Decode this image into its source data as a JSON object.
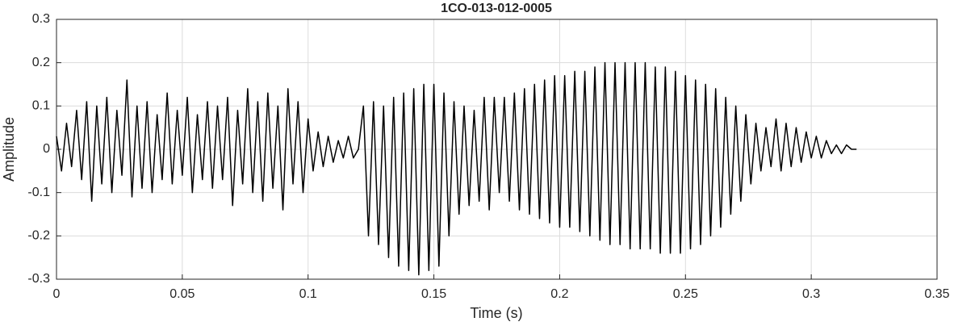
{
  "chart_data": {
    "type": "line",
    "title": "1CO-013-012-0005",
    "xlabel": "Time (s)",
    "ylabel": "Amplitude",
    "color": "#000000",
    "grid": true,
    "xlim": [
      0,
      0.35
    ],
    "ylim": [
      -0.3,
      0.3
    ],
    "xticks": [
      0,
      0.05,
      0.1,
      0.15,
      0.2,
      0.25,
      0.3,
      0.35
    ],
    "yticks": [
      -0.3,
      -0.2,
      -0.1,
      0,
      0.1,
      0.2,
      0.3
    ],
    "x": [
      0,
      0.002,
      0.004,
      0.006,
      0.008,
      0.01,
      0.012,
      0.014,
      0.016,
      0.018,
      0.02,
      0.022,
      0.024,
      0.026,
      0.028,
      0.03,
      0.032,
      0.034,
      0.036,
      0.038,
      0.04,
      0.042,
      0.044,
      0.046,
      0.048,
      0.05,
      0.052,
      0.054,
      0.056,
      0.058,
      0.06,
      0.062,
      0.064,
      0.066,
      0.068,
      0.07,
      0.072,
      0.074,
      0.076,
      0.078,
      0.08,
      0.082,
      0.084,
      0.086,
      0.088,
      0.09,
      0.092,
      0.094,
      0.096,
      0.098,
      0.1,
      0.102,
      0.104,
      0.106,
      0.108,
      0.11,
      0.112,
      0.114,
      0.116,
      0.118,
      0.12,
      0.122,
      0.124,
      0.126,
      0.128,
      0.13,
      0.132,
      0.134,
      0.136,
      0.138,
      0.14,
      0.142,
      0.144,
      0.146,
      0.148,
      0.15,
      0.152,
      0.154,
      0.156,
      0.158,
      0.16,
      0.162,
      0.164,
      0.166,
      0.168,
      0.17,
      0.172,
      0.174,
      0.176,
      0.178,
      0.18,
      0.182,
      0.184,
      0.186,
      0.188,
      0.19,
      0.192,
      0.194,
      0.196,
      0.198,
      0.2,
      0.202,
      0.204,
      0.206,
      0.208,
      0.21,
      0.212,
      0.214,
      0.216,
      0.218,
      0.22,
      0.222,
      0.224,
      0.226,
      0.228,
      0.23,
      0.232,
      0.234,
      0.236,
      0.238,
      0.24,
      0.242,
      0.244,
      0.246,
      0.248,
      0.25,
      0.252,
      0.254,
      0.256,
      0.258,
      0.26,
      0.262,
      0.264,
      0.266,
      0.268,
      0.27,
      0.272,
      0.274,
      0.276,
      0.278,
      0.28,
      0.282,
      0.284,
      0.286,
      0.288,
      0.29,
      0.292,
      0.294,
      0.296,
      0.298,
      0.3,
      0.302,
      0.304,
      0.306,
      0.308,
      0.31,
      0.312,
      0.314,
      0.316,
      0.318
    ],
    "values": [
      0.03,
      -0.05,
      0.06,
      -0.04,
      0.09,
      -0.07,
      0.11,
      -0.12,
      0.1,
      -0.08,
      0.12,
      -0.1,
      0.09,
      -0.06,
      0.16,
      -0.11,
      0.1,
      -0.09,
      0.11,
      -0.1,
      0.08,
      -0.07,
      0.13,
      -0.08,
      0.09,
      -0.06,
      0.12,
      -0.1,
      0.08,
      -0.07,
      0.11,
      -0.09,
      0.1,
      -0.07,
      0.12,
      -0.13,
      0.09,
      -0.08,
      0.14,
      -0.1,
      0.11,
      -0.12,
      0.13,
      -0.09,
      0.1,
      -0.14,
      0.14,
      -0.08,
      0.11,
      -0.1,
      0.07,
      -0.05,
      0.04,
      -0.04,
      0.03,
      -0.03,
      0.02,
      -0.02,
      0.03,
      -0.02,
      0,
      0.1,
      -0.2,
      0.11,
      -0.22,
      0.1,
      -0.25,
      0.12,
      -0.27,
      0.13,
      -0.28,
      0.14,
      -0.29,
      0.15,
      -0.28,
      0.15,
      -0.27,
      0.13,
      -0.2,
      0.11,
      -0.15,
      0.1,
      -0.13,
      0.09,
      -0.12,
      0.12,
      -0.14,
      0.12,
      -0.1,
      0.12,
      -0.12,
      0.13,
      -0.14,
      0.14,
      -0.15,
      0.15,
      -0.16,
      0.16,
      -0.17,
      0.17,
      -0.18,
      0.17,
      -0.18,
      0.18,
      -0.19,
      0.18,
      -0.2,
      0.19,
      -0.21,
      0.2,
      -0.22,
      0.2,
      -0.22,
      0.2,
      -0.23,
      0.2,
      -0.23,
      0.2,
      -0.23,
      0.19,
      -0.24,
      0.19,
      -0.24,
      0.18,
      -0.24,
      0.17,
      -0.23,
      0.16,
      -0.22,
      0.15,
      -0.2,
      0.14,
      -0.18,
      0.12,
      -0.15,
      0.1,
      -0.12,
      0.08,
      -0.08,
      0.06,
      -0.05,
      0.05,
      -0.04,
      0.07,
      -0.05,
      0.06,
      -0.04,
      0.05,
      -0.03,
      0.04,
      -0.02,
      0.03,
      -0.02,
      0.02,
      -0.01,
      0.01,
      -0.01,
      0.01,
      0,
      0
    ]
  }
}
